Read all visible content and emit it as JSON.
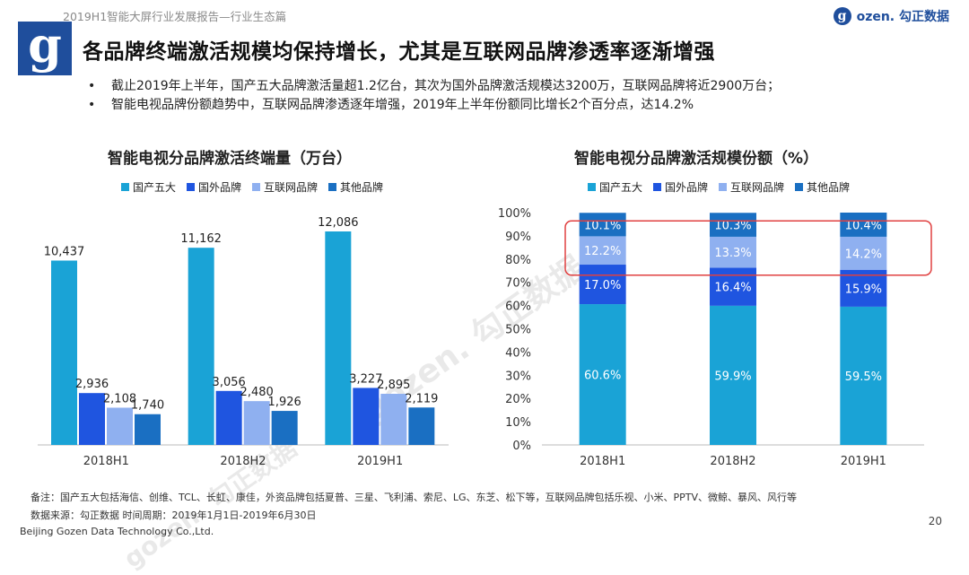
{
  "header": {
    "report_title": "2019H1智能大屏行业发展报告—行业生态篇",
    "brand_g": "g",
    "brand_name": "ozen. 勾正数据",
    "logo_letter": "g"
  },
  "headline": "各品牌终端激活规模均保持增长，尤其是互联网品牌渗透率逐渐增强",
  "bullets": [
    "截止2019年上半年，国产五大品牌激活量超1.2亿台，其次为国外品牌激活规模达3200万，互联网品牌将近2900万台；",
    "智能电视品牌份额趋势中，互联网品牌渗透逐年增强，2019年上半年份额同比增长2个百分点，达14.2%"
  ],
  "colors": {
    "series": [
      "#1aa3d6",
      "#1f55e0",
      "#8fb0f0",
      "#1a6fc2"
    ],
    "highlight": "#e04040",
    "brand": "#1f4e9c"
  },
  "chart_data": [
    {
      "type": "bar",
      "title": "智能电视分品牌激活终端量（万台）",
      "categories": [
        "2018H1",
        "2018H2",
        "2019H1"
      ],
      "series": [
        {
          "name": "国产五大",
          "values": [
            10437,
            11162,
            12086
          ],
          "labels": [
            "10,437",
            "11,162",
            "12,086"
          ]
        },
        {
          "name": "国外品牌",
          "values": [
            2936,
            3056,
            3227
          ],
          "labels": [
            "2,936",
            "3,056",
            "3,227"
          ]
        },
        {
          "name": "互联网品牌",
          "values": [
            2108,
            2480,
            2895
          ],
          "labels": [
            "2,108",
            "2,480",
            "2,895"
          ]
        },
        {
          "name": "其他品牌",
          "values": [
            1740,
            1926,
            2119
          ],
          "labels": [
            "1,740",
            "1,926",
            "2,119"
          ]
        }
      ],
      "ylim": [
        0,
        13000
      ]
    },
    {
      "type": "bar",
      "stacked": true,
      "title": "智能电视分品牌激活规模份额（%）",
      "categories": [
        "2018H1",
        "2018H2",
        "2019H1"
      ],
      "series": [
        {
          "name": "国产五大",
          "values": [
            60.6,
            59.9,
            59.5
          ],
          "labels": [
            "60.6%",
            "59.9%",
            "59.5%"
          ]
        },
        {
          "name": "国外品牌",
          "values": [
            17.0,
            16.4,
            15.9
          ],
          "labels": [
            "17.0%",
            "16.4%",
            "15.9%"
          ]
        },
        {
          "name": "互联网品牌",
          "values": [
            12.2,
            13.3,
            14.2
          ],
          "labels": [
            "12.2%",
            "13.3%",
            "14.2%"
          ]
        },
        {
          "name": "其他品牌",
          "values": [
            10.1,
            10.3,
            10.4
          ],
          "labels": [
            "10.1%",
            "10.3%",
            "10.4%"
          ]
        }
      ],
      "y_ticks": [
        "0%",
        "10%",
        "20%",
        "30%",
        "40%",
        "50%",
        "60%",
        "70%",
        "80%",
        "90%",
        "100%"
      ],
      "ylim": [
        0,
        100
      ],
      "highlighted_series": "互联网品牌"
    }
  ],
  "footer": {
    "note": "备注：国产五大包括海信、创维、TCL、长虹、康佳，外资品牌包括夏普、三星、飞利浦、索尼、LG、东芝、松下等，互联网品牌包括乐视、小米、PPTV、微鲸、暴风、风行等",
    "source": "数据来源：勾正数据      时间周期：2019年1月1日-2019年6月30日",
    "company": "Beijing Gozen Data Technology Co.,Ltd.",
    "page_number": "20"
  },
  "watermark_text": "gozen. 勾正数据"
}
